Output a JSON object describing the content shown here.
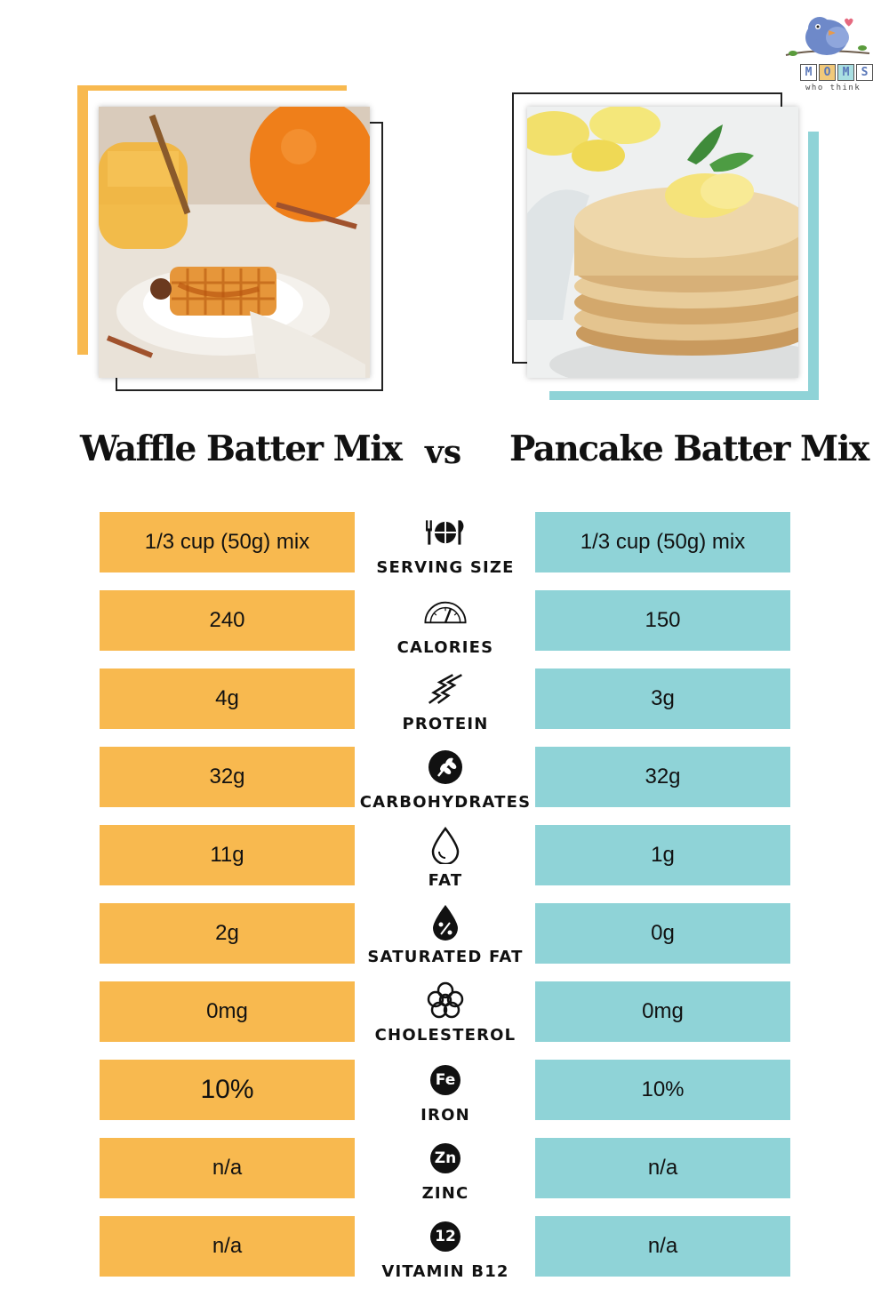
{
  "logo": {
    "letters": [
      "M",
      "O",
      "M",
      "S"
    ],
    "tagline": "who think"
  },
  "colors": {
    "waffle_accent": "#f8b94f",
    "pancake_accent": "#8fd3d7"
  },
  "titles": {
    "left": "Waffle Batter Mix",
    "vs": "vs",
    "right": "Pancake Batter Mix"
  },
  "rows": [
    {
      "label": "SERVING SIZE",
      "icon": "cutlery-plate-icon",
      "waffle": "1/3 cup (50g) mix",
      "pancake": "1/3 cup (50g) mix"
    },
    {
      "label": "CALORIES",
      "icon": "gauge-icon",
      "waffle": "240",
      "pancake": "150"
    },
    {
      "label": "PROTEIN",
      "icon": "protein-helix-icon",
      "waffle": "4g",
      "pancake": "3g"
    },
    {
      "label": "CARBOHYDRATES",
      "icon": "grain-icon",
      "waffle": "32g",
      "pancake": "32g"
    },
    {
      "label": "FAT",
      "icon": "drop-icon",
      "waffle": "11g",
      "pancake": "1g"
    },
    {
      "label": "SATURATED FAT",
      "icon": "percent-drop-icon",
      "waffle": "2g",
      "pancake": "0g"
    },
    {
      "label": "CHOLESTEROL",
      "icon": "cholesterol-icon",
      "waffle": "0mg",
      "pancake": "0mg"
    },
    {
      "label": "IRON",
      "icon": "fe-badge-icon",
      "badge": "Fe",
      "waffle": "10%",
      "pancake": "10%"
    },
    {
      "label": "ZINC",
      "icon": "zn-badge-icon",
      "badge": "Zn",
      "waffle": "n/a",
      "pancake": "n/a"
    },
    {
      "label": "VITAMIN B12",
      "icon": "b12-badge-icon",
      "badge": "12",
      "waffle": "n/a",
      "pancake": "n/a"
    }
  ]
}
